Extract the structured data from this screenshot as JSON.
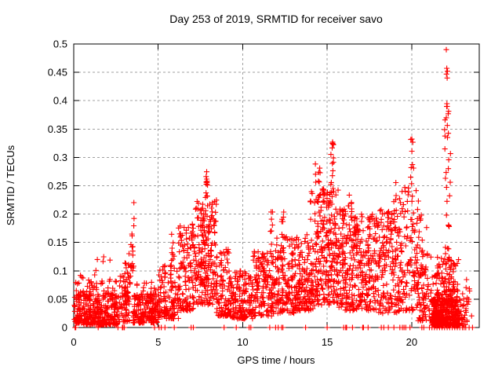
{
  "chart_data": {
    "type": "scatter",
    "title": "Day 253 of 2019, SRMTID for receiver savo",
    "xlabel": "GPS time / hours",
    "ylabel": "SRMTID / TECUs",
    "xlim": [
      0,
      24
    ],
    "ylim": [
      0,
      0.5
    ],
    "xticks": [
      0,
      5,
      10,
      15,
      20
    ],
    "xtick_labels": [
      "0",
      "5",
      "10",
      "15",
      "20"
    ],
    "yticks": [
      0,
      0.05,
      0.1,
      0.15,
      0.2,
      0.25,
      0.3,
      0.35,
      0.4,
      0.45,
      0.5
    ],
    "ytick_labels": [
      "0",
      "0.05",
      "0.1",
      "0.15",
      "0.2",
      "0.25",
      "0.3",
      "0.35",
      "0.4",
      "0.45",
      "0.5"
    ],
    "grid": true,
    "grid_style": "dashed",
    "grid_color": "#a0a0a0",
    "marker": {
      "shape": "plus",
      "color": "#ff0000",
      "size": 7
    },
    "border_color": "#000000",
    "series_name": "SRMTID",
    "cluster_format": "[hour_start, hour_end, n_points, y_min, y_max, skew] — skew>1 biases toward y_min",
    "clusters": [
      [
        0.03,
        0.6,
        70,
        0.008,
        0.06,
        1.5
      ],
      [
        0.05,
        0.6,
        12,
        0.05,
        0.095,
        1.0
      ],
      [
        0.6,
        2.6,
        280,
        0.005,
        0.065,
        1.7
      ],
      [
        0.8,
        2.6,
        25,
        0.06,
        0.085,
        1.0
      ],
      [
        1.2,
        2.3,
        6,
        0.085,
        0.13,
        1.0
      ],
      [
        2.6,
        3.35,
        80,
        0.01,
        0.095,
        1.5
      ],
      [
        3.0,
        3.45,
        10,
        0.09,
        0.14,
        1.0
      ],
      [
        3.38,
        3.58,
        16,
        0.1,
        0.228,
        1.0
      ],
      [
        3.5,
        5.0,
        190,
        0.008,
        0.06,
        1.6
      ],
      [
        3.6,
        4.9,
        10,
        0.06,
        0.08,
        1.0
      ],
      [
        5.0,
        6.2,
        120,
        0.015,
        0.11,
        1.5
      ],
      [
        5.75,
        5.95,
        10,
        0.1,
        0.185,
        1.0
      ],
      [
        6.2,
        7.15,
        130,
        0.03,
        0.185,
        1.3
      ],
      [
        7.15,
        8.45,
        210,
        0.04,
        0.225,
        1.2
      ],
      [
        7.78,
        7.95,
        12,
        0.225,
        0.285,
        1.0
      ],
      [
        8.45,
        9.2,
        90,
        0.02,
        0.14,
        1.5
      ],
      [
        9.2,
        10.6,
        160,
        0.015,
        0.1,
        1.5
      ],
      [
        10.6,
        11.85,
        150,
        0.02,
        0.135,
        1.4
      ],
      [
        11.6,
        11.78,
        8,
        0.13,
        0.205,
        1.0
      ],
      [
        11.85,
        13.1,
        160,
        0.025,
        0.16,
        1.35
      ],
      [
        12.3,
        12.45,
        7,
        0.15,
        0.215,
        1.0
      ],
      [
        13.1,
        14.25,
        160,
        0.03,
        0.165,
        1.4
      ],
      [
        14.0,
        14.15,
        6,
        0.17,
        0.24,
        1.0
      ],
      [
        14.25,
        15.65,
        240,
        0.04,
        0.245,
        1.25
      ],
      [
        14.3,
        14.65,
        8,
        0.255,
        0.29,
        1.0
      ],
      [
        15.2,
        15.38,
        14,
        0.24,
        0.327,
        1.0
      ],
      [
        15.65,
        16.7,
        160,
        0.03,
        0.215,
        1.3
      ],
      [
        16.3,
        16.7,
        8,
        0.19,
        0.235,
        1.0
      ],
      [
        16.7,
        18.0,
        180,
        0.03,
        0.2,
        1.3
      ],
      [
        18.0,
        19.25,
        160,
        0.025,
        0.21,
        1.3
      ],
      [
        18.9,
        19.1,
        8,
        0.18,
        0.26,
        1.0
      ],
      [
        19.25,
        20.35,
        120,
        0.03,
        0.25,
        1.3
      ],
      [
        19.92,
        20.12,
        9,
        0.25,
        0.34,
        1.0
      ],
      [
        20.35,
        21.55,
        120,
        0.012,
        0.13,
        1.6
      ],
      [
        20.35,
        20.6,
        6,
        0.15,
        0.23,
        1.0
      ],
      [
        20.4,
        21.0,
        8,
        0.13,
        0.22,
        1.0
      ],
      [
        21.2,
        22.85,
        380,
        0.003,
        0.05,
        1.7
      ],
      [
        21.5,
        22.8,
        100,
        0.05,
        0.125,
        1.4
      ],
      [
        21.95,
        22.3,
        26,
        0.13,
        0.4,
        1.2
      ],
      [
        22.85,
        23.3,
        25,
        0.005,
        0.06,
        1.5
      ],
      [
        23.2,
        23.55,
        8,
        0.02,
        0.09,
        1.2
      ]
    ],
    "highlight_points": [
      [
        22.05,
        0.49
      ],
      [
        22.08,
        0.457
      ],
      [
        22.12,
        0.452
      ],
      [
        22.06,
        0.447
      ],
      [
        22.1,
        0.44
      ],
      [
        22.1,
        0.39
      ],
      [
        22.16,
        0.377
      ],
      [
        22.05,
        0.37
      ],
      [
        22.12,
        0.335
      ]
    ],
    "zero_points": [
      0.08,
      0.1,
      0.12,
      1.45,
      2.62,
      2.88,
      2.92,
      3.0,
      4.78,
      5.05,
      5.18,
      5.4,
      5.95,
      6.95,
      7.08,
      8.9,
      9.62,
      10.38,
      10.48,
      11.6,
      11.95,
      12.1,
      12.3,
      12.38,
      13.72,
      15.0,
      15.98,
      16.1,
      16.15,
      16.5,
      17.1,
      17.15,
      17.42,
      18.2,
      18.35,
      18.62,
      18.95,
      19.3,
      19.45,
      19.55,
      19.65,
      19.9,
      20.6,
      20.72,
      21.05,
      21.2,
      21.35,
      21.5,
      21.65,
      21.8,
      21.95,
      22.1,
      22.25,
      22.4,
      22.55,
      22.7,
      22.85,
      23.0,
      23.1,
      23.2,
      23.4,
      23.6
    ],
    "legend": null
  }
}
